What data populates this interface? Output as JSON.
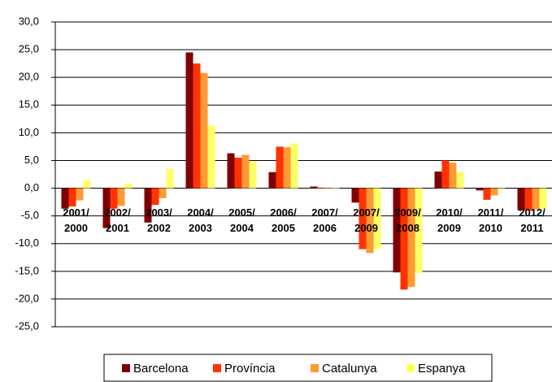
{
  "chart_data": {
    "type": "bar",
    "categories": [
      "2001/ 2000",
      "2002/ 2001",
      "2003/ 2002",
      "2004/ 2003",
      "2005/ 2004",
      "2006/ 2005",
      "2007/ 2006",
      "2007/ 2009",
      "2009/ 2008",
      "2010/ 2009",
      "2011/ 2010",
      "2012/ 2011"
    ],
    "series": [
      {
        "name": "Barcelona",
        "color": "#800000",
        "values": [
          -3.7,
          -7.2,
          -6.2,
          24.5,
          6.3,
          2.9,
          0.3,
          -2.6,
          -15.2,
          3.0,
          -0.4,
          -4.0
        ]
      },
      {
        "name": "Província",
        "color": "#ff3300",
        "values": [
          -3.3,
          -3.7,
          -3.0,
          22.5,
          5.5,
          7.5,
          0.1,
          -11.0,
          -18.3,
          5.0,
          -2.1,
          -4.0
        ]
      },
      {
        "name": "Catalunya",
        "color": "#ff9933",
        "values": [
          -2.2,
          -3.2,
          -1.8,
          20.8,
          6.0,
          7.4,
          0.1,
          -11.7,
          -17.8,
          4.6,
          -1.3,
          -3.8
        ]
      },
      {
        "name": "Espanya",
        "color": "#ffff66",
        "values": [
          1.5,
          0.8,
          3.5,
          11.3,
          4.9,
          8.1,
          0.1,
          -11.0,
          -15.3,
          2.9,
          -0.2,
          -3.7
        ]
      }
    ],
    "ylim": [
      -25,
      30
    ],
    "yticks": [
      {
        "value": 30,
        "label": "30,0"
      },
      {
        "value": 25,
        "label": "25,0"
      },
      {
        "value": 20,
        "label": "20,0"
      },
      {
        "value": 15,
        "label": "15,0"
      },
      {
        "value": 10,
        "label": "10,0"
      },
      {
        "value": 5,
        "label": "5,0"
      },
      {
        "value": 0,
        "label": "0,0"
      },
      {
        "value": -5,
        "label": "-5,0"
      },
      {
        "value": -10,
        "label": "-10,0"
      },
      {
        "value": -15,
        "label": "-15,0"
      },
      {
        "value": -20,
        "label": "-20,0"
      },
      {
        "value": -25,
        "label": "-25,0"
      }
    ],
    "grid": true,
    "legend": "bottom"
  }
}
